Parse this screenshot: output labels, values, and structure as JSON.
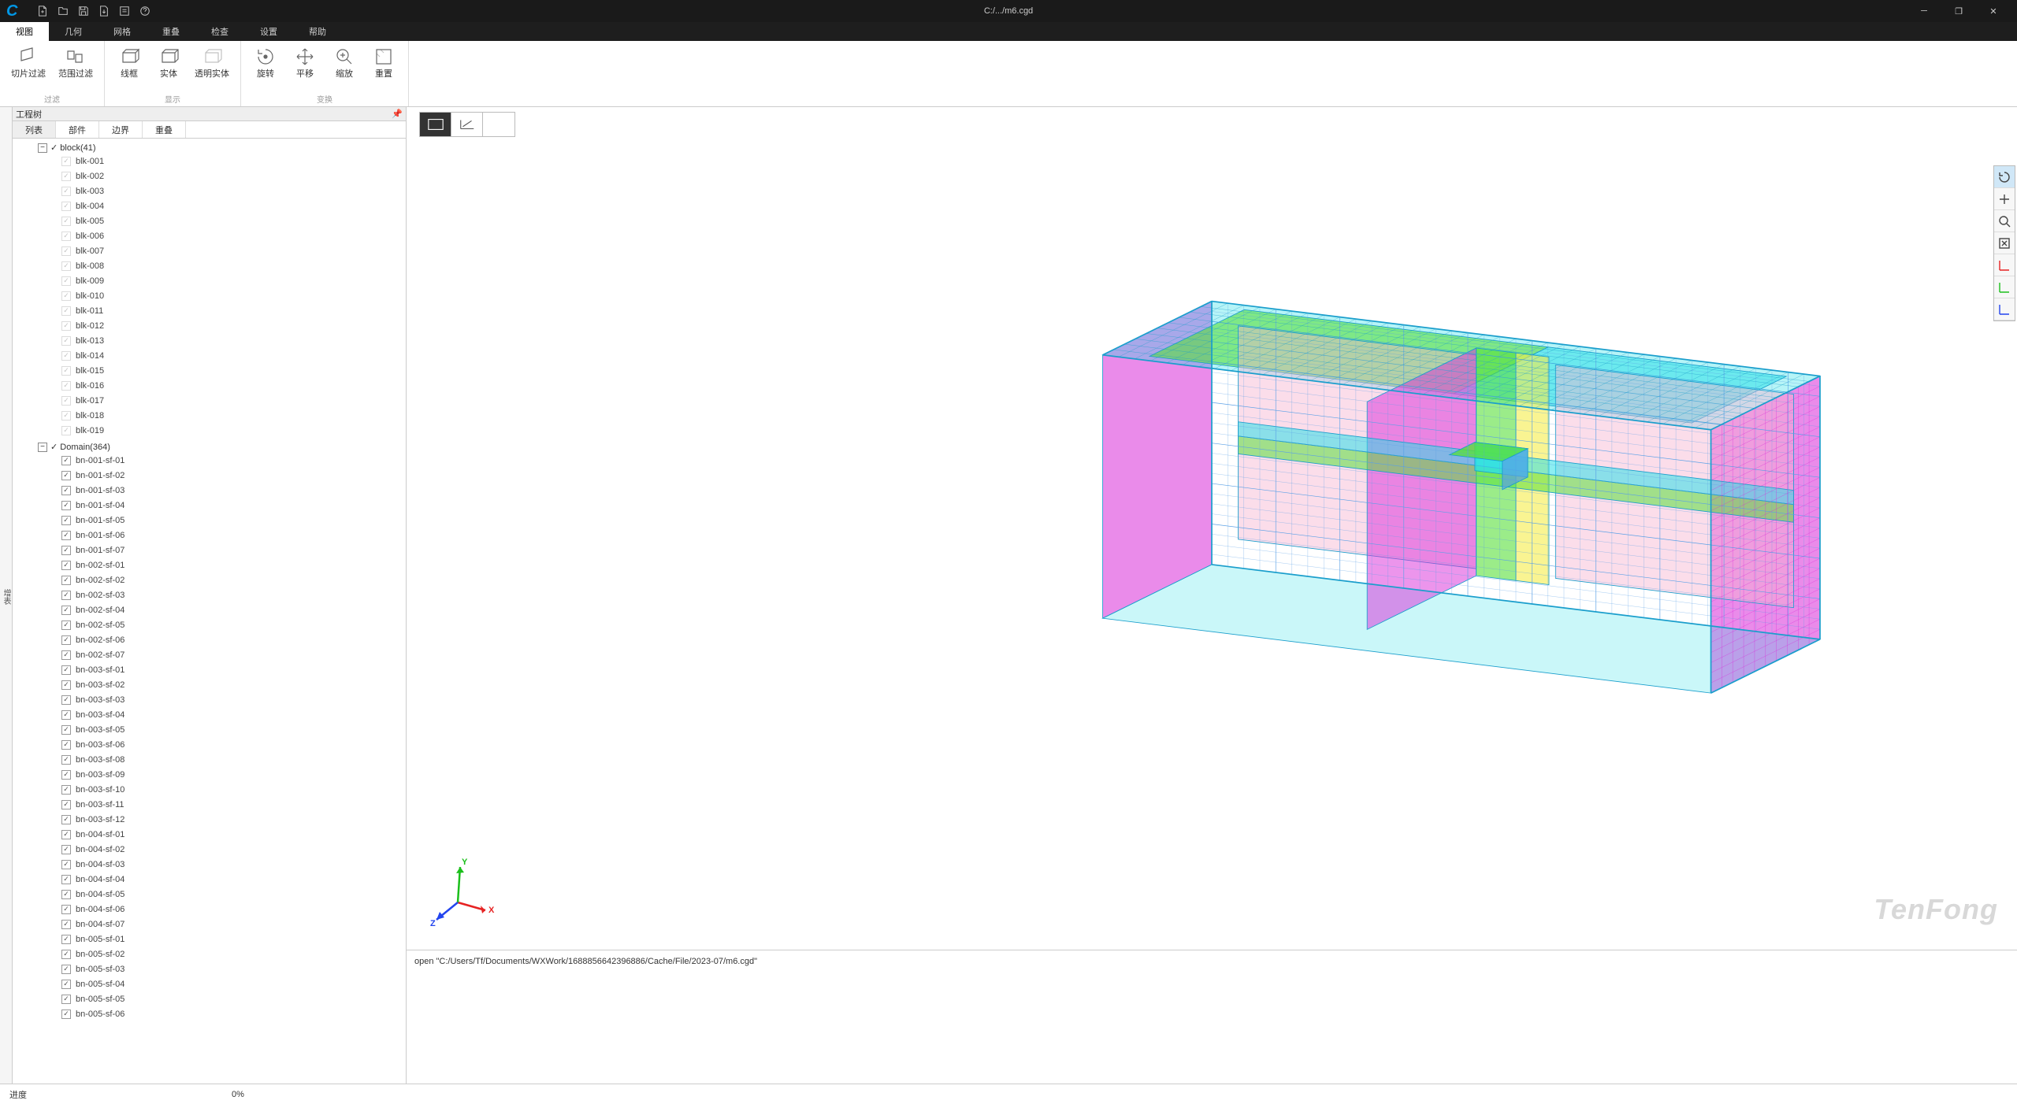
{
  "window": {
    "title": "C:/.../m6.cgd"
  },
  "menu": {
    "items": [
      "视图",
      "几何",
      "网格",
      "重叠",
      "检查",
      "设置",
      "帮助"
    ],
    "active_index": 0
  },
  "ribbon": {
    "groups": [
      {
        "name": "过滤",
        "buttons": [
          {
            "label": "切片过滤",
            "icon": "slice"
          },
          {
            "label": "范围过滤",
            "icon": "range"
          }
        ]
      },
      {
        "name": "显示",
        "buttons": [
          {
            "label": "线框",
            "icon": "wire"
          },
          {
            "label": "实体",
            "icon": "solid"
          },
          {
            "label": "透明实体",
            "icon": "trans"
          }
        ]
      },
      {
        "name": "变换",
        "buttons": [
          {
            "label": "旋转",
            "icon": "rotate"
          },
          {
            "label": "平移",
            "icon": "pan"
          },
          {
            "label": "缩放",
            "icon": "zoom"
          },
          {
            "label": "重置",
            "icon": "reset"
          }
        ]
      }
    ]
  },
  "tree": {
    "title": "工程树",
    "tabs": [
      "列表",
      "部件",
      "边界",
      "重叠"
    ],
    "active_tab": 0,
    "block": {
      "label": "block(41)",
      "items": [
        "blk-001",
        "blk-002",
        "blk-003",
        "blk-004",
        "blk-005",
        "blk-006",
        "blk-007",
        "blk-008",
        "blk-009",
        "blk-010",
        "blk-011",
        "blk-012",
        "blk-013",
        "blk-014",
        "blk-015",
        "blk-016",
        "blk-017",
        "blk-018",
        "blk-019"
      ]
    },
    "domain": {
      "label": "Domain(364)",
      "items": [
        "bn-001-sf-01",
        "bn-001-sf-02",
        "bn-001-sf-03",
        "bn-001-sf-04",
        "bn-001-sf-05",
        "bn-001-sf-06",
        "bn-001-sf-07",
        "bn-002-sf-01",
        "bn-002-sf-02",
        "bn-002-sf-03",
        "bn-002-sf-04",
        "bn-002-sf-05",
        "bn-002-sf-06",
        "bn-002-sf-07",
        "bn-003-sf-01",
        "bn-003-sf-02",
        "bn-003-sf-03",
        "bn-003-sf-04",
        "bn-003-sf-05",
        "bn-003-sf-06",
        "bn-003-sf-08",
        "bn-003-sf-09",
        "bn-003-sf-10",
        "bn-003-sf-11",
        "bn-003-sf-12",
        "bn-004-sf-01",
        "bn-004-sf-02",
        "bn-004-sf-03",
        "bn-004-sf-04",
        "bn-004-sf-05",
        "bn-004-sf-06",
        "bn-004-sf-07",
        "bn-005-sf-01",
        "bn-005-sf-02",
        "bn-005-sf-03",
        "bn-005-sf-04",
        "bn-005-sf-05",
        "bn-005-sf-06"
      ]
    }
  },
  "sidecollapse_label": "增表",
  "viewport": {
    "watermark": "TenFong",
    "console_text": "open \"C:/Users/Tf/Documents/WXWork/1688856642396886/Cache/File/2023-07/m6.cgd\"",
    "axis": {
      "x": "X",
      "y": "Y",
      "z": "Z"
    },
    "mesh_colors": {
      "cyan": "#2de0e8",
      "magenta": "#d92bd9",
      "green": "#58e03a",
      "yellow": "#f5ec4a",
      "pink": "#f7b4d0",
      "blue": "#5aa0e6",
      "purple": "#9a4ad9",
      "outline": "#1a9ecc"
    }
  },
  "rightbar": {
    "items": [
      "rotate",
      "pan",
      "zoom",
      "fit",
      "axis1",
      "axis2",
      "axis3"
    ],
    "active": 0
  },
  "status": {
    "label": "进度",
    "percent": "0%"
  }
}
